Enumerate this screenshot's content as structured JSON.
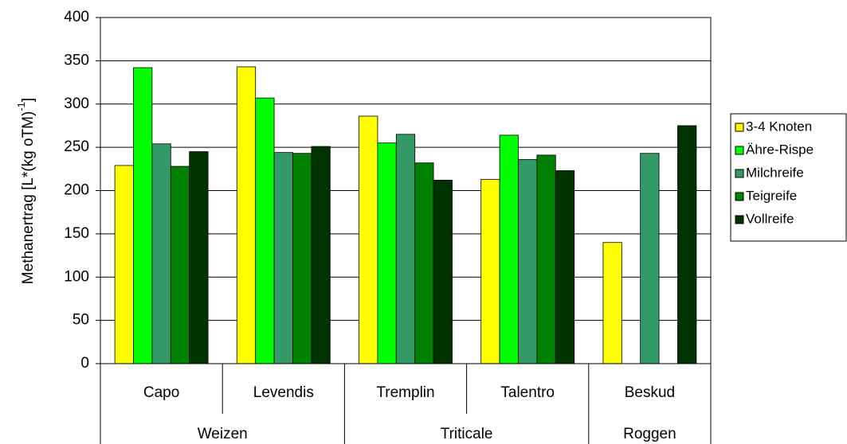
{
  "chart_data": {
    "type": "bar",
    "y_label": "Methanertrag [L*(kg oTM)",
    "y_label_sup": "-1",
    "y_label_end": "]",
    "groups": [
      {
        "name": "Weizen",
        "categories": [
          "Capo",
          "Levendis"
        ]
      },
      {
        "name": "Triticale",
        "categories": [
          "Tremplin",
          "Talentro"
        ]
      },
      {
        "name": "Roggen",
        "categories": [
          "Beskud"
        ]
      }
    ],
    "series": [
      {
        "name": "3-4 Knoten",
        "color": "#ffff00",
        "values": [
          229,
          343,
          286,
          213,
          140
        ]
      },
      {
        "name": "Ähre-Rispe",
        "color": "#00ff00",
        "values": [
          342,
          307,
          255,
          264,
          null
        ]
      },
      {
        "name": "Milchreife",
        "color": "#339966",
        "values": [
          254,
          244,
          265,
          236,
          243
        ]
      },
      {
        "name": "Teigreife",
        "color": "#008000",
        "values": [
          228,
          243,
          232,
          241,
          null
        ]
      },
      {
        "name": "Vollreife",
        "color": "#003300",
        "values": [
          245,
          251,
          212,
          223,
          275
        ]
      }
    ],
    "ylim": [
      0,
      400
    ],
    "yticks": [
      0,
      50,
      100,
      150,
      200,
      250,
      300,
      350,
      400
    ],
    "grid": true,
    "legend": "right"
  }
}
